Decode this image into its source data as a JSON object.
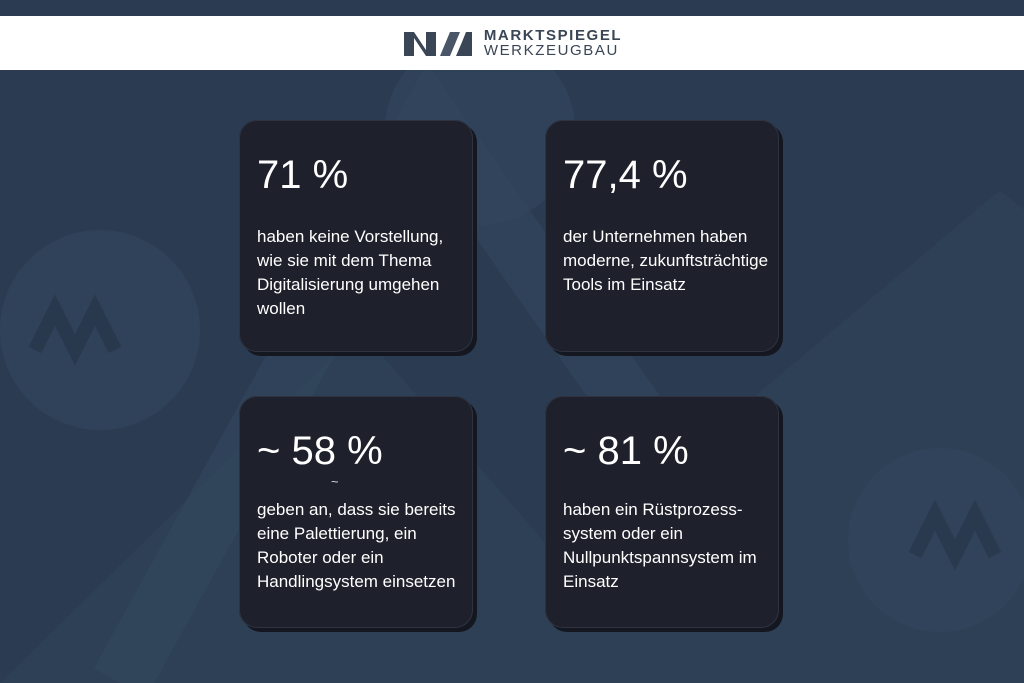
{
  "header": {
    "logo_line1": "MARKTSPIEGEL",
    "logo_line2": "WERKZEUGBAU"
  },
  "cards": [
    {
      "value": "71 %",
      "text": "haben keine Vorstellung, wie sie mit dem Thema Digitalisierung umgehen wollen"
    },
    {
      "value": "77,4 %",
      "text": "der Unternehmen haben moderne, zukunftsträchtige Tools im Einsatz"
    },
    {
      "value": "~ 58 %",
      "note": "~",
      "text": "geben an, dass sie bereits eine Palettierung, ein Roboter oder ein Handlingsystem einsetzen"
    },
    {
      "value": "~ 81 %",
      "text": "haben ein Rüstprozess-system oder ein Nullpunktspannsystem im Einsatz"
    }
  ],
  "colors": {
    "background": "#2b3c52",
    "card": "#1e212b",
    "logo": "#3a4656"
  },
  "icons": [
    "marktspiegel-logo-icon",
    "watermark-badge-icon"
  ]
}
